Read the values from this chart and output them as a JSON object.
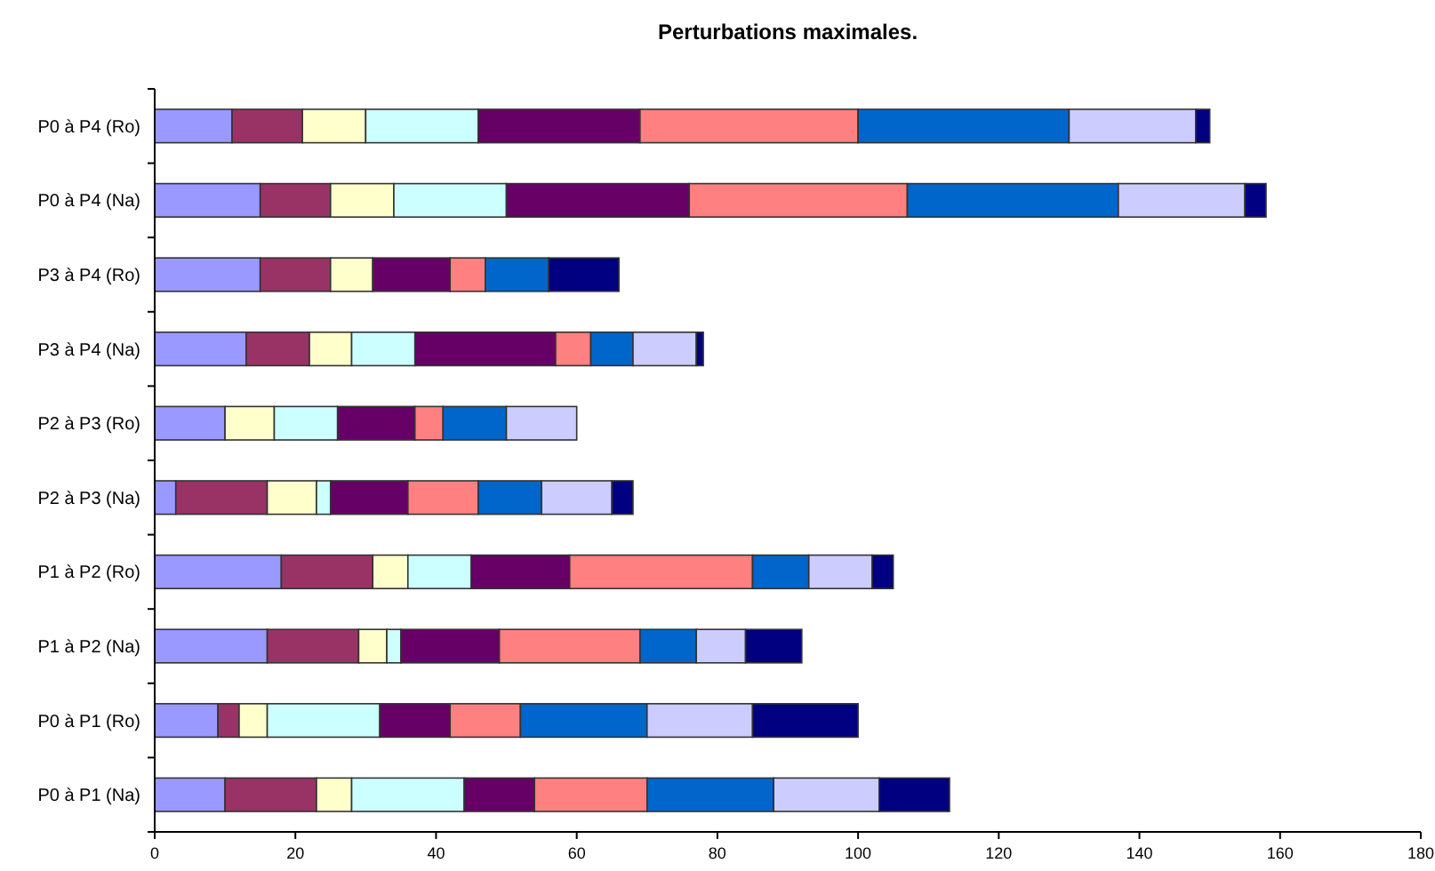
{
  "chart_data": {
    "type": "bar",
    "title": "Perturbations maximales.",
    "orientation": "horizontal",
    "stacked": true,
    "grid": false,
    "categories": [
      "P0 à P4 (Ro)",
      "P0 à P4 (Na)",
      "P3 à P4 (Ro)",
      "P3 à P4 (Na)",
      "P2 à P3 (Ro)",
      "P2 à P3 (Na)",
      "P1 à P2 (Ro)",
      "P1 à P2 (Na)",
      "P0 à P1 (Ro)",
      "P0 à P1 (Na)"
    ],
    "xlim": [
      0,
      180
    ],
    "xticks": [
      0,
      20,
      40,
      60,
      80,
      100,
      120,
      140,
      160,
      180
    ],
    "series": [
      {
        "color": "#9999ff",
        "values": [
          11,
          15,
          15,
          13,
          10,
          3,
          18,
          16,
          9,
          10
        ]
      },
      {
        "color": "#993366",
        "values": [
          10,
          10,
          10,
          9,
          0,
          13,
          13,
          13,
          3,
          13
        ]
      },
      {
        "color": "#ffffcc",
        "values": [
          9,
          9,
          6,
          6,
          7,
          7,
          5,
          4,
          4,
          5
        ]
      },
      {
        "color": "#ccffff",
        "values": [
          16,
          16,
          0,
          9,
          9,
          2,
          9,
          2,
          16,
          16
        ]
      },
      {
        "color": "#660066",
        "values": [
          23,
          26,
          11,
          20,
          11,
          11,
          14,
          14,
          10,
          10
        ]
      },
      {
        "color": "#ff8080",
        "values": [
          31,
          31,
          5,
          5,
          4,
          10,
          26,
          20,
          10,
          16
        ]
      },
      {
        "color": "#0066cc",
        "values": [
          30,
          30,
          9,
          6,
          9,
          9,
          8,
          8,
          18,
          18
        ]
      },
      {
        "color": "#ccccff",
        "values": [
          18,
          18,
          0,
          9,
          10,
          10,
          9,
          7,
          15,
          15
        ]
      },
      {
        "color": "#000080",
        "values": [
          2,
          3,
          10,
          1,
          0,
          3,
          3,
          8,
          15,
          10
        ]
      }
    ]
  }
}
